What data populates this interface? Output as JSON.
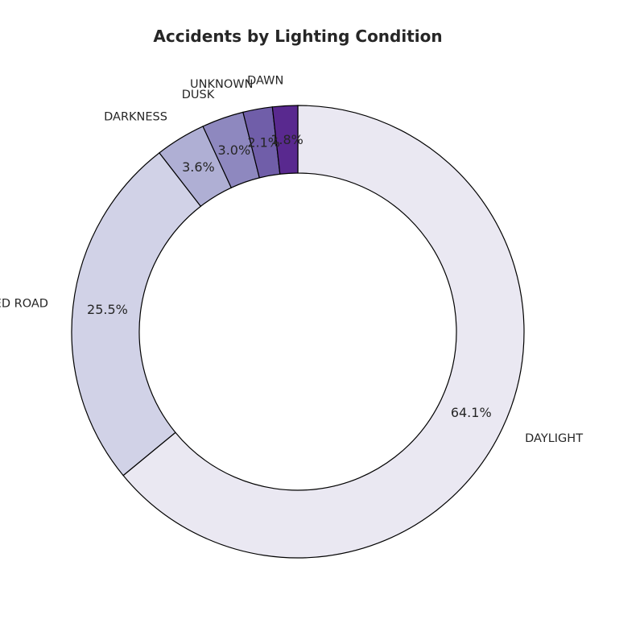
{
  "chart_data": {
    "type": "pie",
    "donut": true,
    "title": "Accidents by Lighting Condition",
    "start_angle_deg": 90,
    "direction": "clockwise",
    "slices": [
      {
        "label": "DAYLIGHT",
        "value": 64.1,
        "pct_text": "64.1%",
        "color": "#eae8f2"
      },
      {
        "label": "DARKNESS, LIGHTED ROAD",
        "value": 25.5,
        "pct_text": "25.5%",
        "color": "#d1d2e7"
      },
      {
        "label": "DARKNESS",
        "value": 3.6,
        "pct_text": "3.6%",
        "color": "#afafd4"
      },
      {
        "label": "DUSK",
        "value": 3.0,
        "pct_text": "3.0%",
        "color": "#8e88bf"
      },
      {
        "label": "UNKNOWN",
        "value": 2.1,
        "pct_text": "2.1%",
        "color": "#705ea9"
      },
      {
        "label": "DAWN",
        "value": 1.8,
        "pct_text": "1.8%",
        "color": "#59298f"
      }
    ]
  }
}
